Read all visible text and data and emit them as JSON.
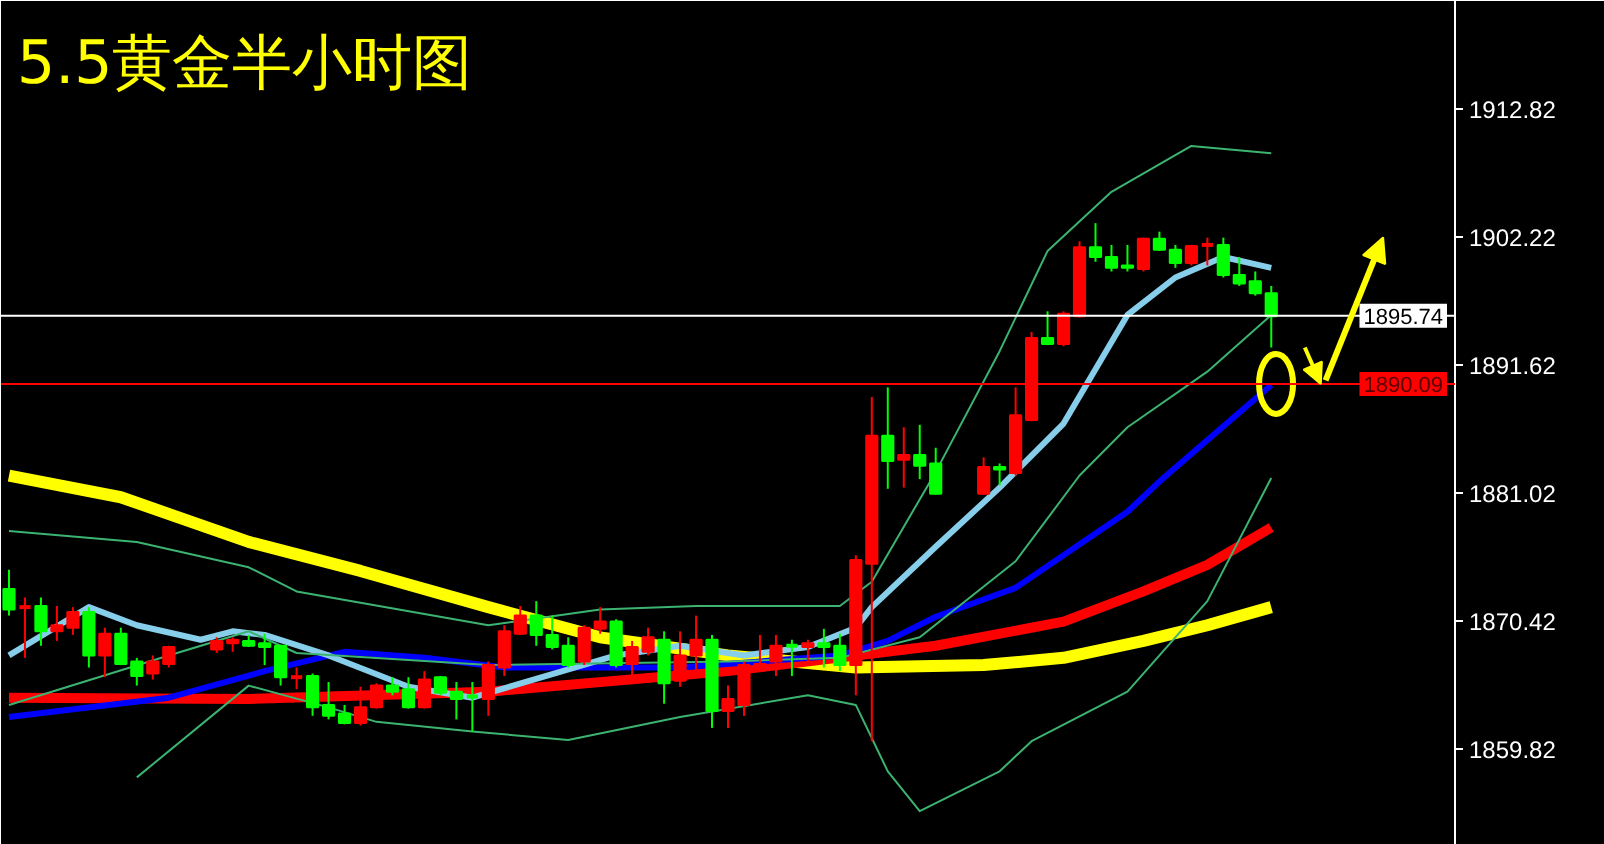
{
  "chart_data": {
    "type": "candlestick",
    "title": "5.5黄金半小时图",
    "categories": [
      null,
      null,
      null,
      null,
      null,
      null,
      null,
      null,
      null,
      null,
      null,
      null,
      null,
      null,
      null,
      null,
      null,
      null,
      null,
      null,
      null,
      null,
      null,
      null,
      null,
      null,
      null,
      null,
      null,
      null,
      null,
      null,
      null,
      null,
      null,
      null,
      null,
      null,
      null,
      null,
      null,
      null,
      null,
      null,
      null,
      null,
      null,
      null,
      null,
      null,
      null,
      null,
      null,
      null,
      null,
      null,
      null,
      null,
      null,
      null,
      null,
      null,
      null,
      null,
      null,
      null,
      null,
      null,
      null,
      null,
      null,
      null,
      null,
      null,
      null,
      null,
      null,
      null,
      null,
      null,
      null,
      null,
      null,
      null,
      null,
      null,
      null,
      null,
      null,
      null,
      null
    ],
    "ohlc": [
      [
        1873.1,
        1874.7,
        1870.9,
        1871.4
      ],
      [
        1871.6,
        1872.4,
        1867.4,
        1871.7
      ],
      [
        1871.7,
        1872.4,
        1868.4,
        1869.6
      ],
      [
        1869.6,
        1871.7,
        1868.8,
        1870.1
      ],
      [
        1869.9,
        1871.6,
        1869.3,
        1871.2
      ],
      [
        1871.2,
        1871.6,
        1866.6,
        1867.6
      ],
      [
        1867.6,
        1869.9,
        1865.8,
        1869.4
      ],
      [
        1869.4,
        1869.9,
        1866.8,
        1866.9
      ],
      [
        1867.1,
        1867.4,
        1865.1,
        1865.9
      ],
      [
        1866.1,
        1867.6,
        1865.6,
        1867.1
      ],
      [
        1866.9,
        1868.4,
        1866.6,
        1868.3
      ],
      null,
      null,
      [
        1868.1,
        1869.1,
        1867.8,
        1868.8
      ],
      [
        1868.6,
        1869.1,
        1867.9,
        1868.9
      ],
      [
        1868.8,
        1869.3,
        1868.3,
        1868.4
      ],
      [
        1868.6,
        1869.4,
        1866.8,
        1868.3
      ],
      [
        1868.4,
        1868.4,
        1865.1,
        1865.8
      ],
      [
        1865.8,
        1866.6,
        1864.8,
        1865.9
      ],
      [
        1865.9,
        1866.1,
        1862.6,
        1863.3
      ],
      [
        1863.5,
        1865.4,
        1862.3,
        1862.6
      ],
      [
        1862.8,
        1863.5,
        1861.9,
        1862.0
      ],
      [
        1862.0,
        1865.0,
        1861.8,
        1863.3
      ],
      [
        1863.3,
        1865.3,
        1863.2,
        1865.1
      ],
      [
        1865.1,
        1865.8,
        1864.3,
        1864.6
      ],
      [
        1864.8,
        1865.8,
        1863.2,
        1863.3
      ],
      [
        1863.3,
        1866.3,
        1863.2,
        1865.6
      ],
      [
        1865.8,
        1865.9,
        1864.3,
        1864.5
      ],
      [
        1864.6,
        1865.4,
        1862.3,
        1864.0
      ],
      [
        1864.2,
        1865.4,
        1861.3,
        1864.1
      ],
      [
        1864.0,
        1867.1,
        1862.6,
        1866.8
      ],
      [
        1866.6,
        1870.1,
        1865.9,
        1869.6
      ],
      [
        1869.4,
        1871.7,
        1869.3,
        1870.9
      ],
      [
        1870.9,
        1872.1,
        1868.4,
        1869.3
      ],
      [
        1869.3,
        1870.9,
        1868.1,
        1868.3
      ],
      [
        1868.4,
        1869.1,
        1866.6,
        1866.8
      ],
      [
        1867.1,
        1870.1,
        1866.8,
        1869.9
      ],
      [
        1869.8,
        1871.6,
        1869.4,
        1870.4
      ],
      [
        1870.4,
        1870.6,
        1866.6,
        1866.8
      ],
      [
        1866.9,
        1868.8,
        1865.8,
        1868.3
      ],
      [
        1867.9,
        1869.9,
        1867.6,
        1869.1
      ],
      [
        1868.9,
        1869.6,
        1863.6,
        1865.3
      ],
      [
        1865.5,
        1869.6,
        1865.0,
        1867.6
      ],
      [
        1867.6,
        1870.9,
        1866.3,
        1868.9
      ],
      [
        1868.9,
        1869.3,
        1861.6,
        1863.0
      ],
      [
        1863.0,
        1865.1,
        1861.6,
        1864.0
      ],
      [
        1863.5,
        1867.1,
        1862.6,
        1866.8
      ],
      [
        1866.6,
        1869.3,
        1866.3,
        1866.9
      ],
      [
        1867.1,
        1869.3,
        1865.9,
        1868.4
      ],
      [
        1868.4,
        1868.9,
        1865.9,
        1868.3
      ],
      [
        1868.3,
        1868.9,
        1867.1,
        1868.6
      ],
      [
        1868.6,
        1869.8,
        1866.6,
        1868.3
      ],
      [
        1868.4,
        1869.4,
        1866.3,
        1866.8
      ],
      [
        1866.8,
        1875.9,
        1864.3,
        1875.5
      ],
      [
        1875.2,
        1889.0,
        1860.5,
        1885.8
      ],
      [
        1885.8,
        1889.8,
        1881.4,
        1883.7
      ],
      [
        1883.8,
        1886.5,
        1881.5,
        1884.2
      ],
      [
        1884.2,
        1886.7,
        1882.2,
        1883.3
      ],
      [
        1883.5,
        1884.8,
        1880.9,
        1881.0
      ],
      null,
      null,
      [
        1881.0,
        1884.0,
        1880.9,
        1883.2
      ],
      [
        1883.2,
        1883.5,
        1881.7,
        1883.0
      ],
      [
        1882.7,
        1889.8,
        1882.5,
        1887.5
      ],
      [
        1887.1,
        1894.4,
        1887.0,
        1893.9
      ],
      [
        1893.9,
        1896.1,
        1893.3,
        1893.4
      ],
      [
        1893.4,
        1896.1,
        1893.2,
        1895.9
      ],
      [
        1895.7,
        1901.9,
        1895.6,
        1901.4
      ],
      [
        1901.4,
        1903.4,
        1900.2,
        1900.6
      ],
      [
        1900.6,
        1901.6,
        1899.4,
        1899.7
      ],
      [
        1899.9,
        1901.6,
        1899.4,
        1899.7
      ],
      [
        1899.6,
        1902.2,
        1899.4,
        1902.1
      ],
      [
        1902.1,
        1902.7,
        1901.1,
        1901.2
      ],
      [
        1901.2,
        1901.6,
        1899.7,
        1900.1
      ],
      [
        1900.1,
        1901.6,
        1899.9,
        1901.5
      ],
      [
        1901.6,
        1902.2,
        1899.9,
        1901.7
      ],
      [
        1901.6,
        1902.2,
        1898.9,
        1899.1
      ],
      [
        1899.1,
        1900.6,
        1898.2,
        1898.4
      ],
      [
        1898.6,
        1899.4,
        1897.4,
        1897.6
      ],
      [
        1897.6,
        1898.2,
        1893.1,
        1895.7
      ],
      null,
      null,
      null,
      null,
      null,
      null,
      null,
      null,
      null,
      null,
      null
    ],
    "colors": [
      "#00ff00",
      "#ff0000",
      "#00ff00",
      "#ff0000",
      "#ff0000",
      "#00ff00",
      "#ff0000",
      "#00ff00",
      "#00ff00",
      "#ff0000",
      "#ff0000",
      null,
      null,
      "#ff0000",
      "#ff0000",
      "#00ff00",
      "#00ff00",
      "#00ff00",
      "#ff0000",
      "#00ff00",
      "#00ff00",
      "#00ff00",
      "#ff0000",
      "#ff0000",
      "#00ff00",
      "#00ff00",
      "#ff0000",
      "#00ff00",
      "#00ff00",
      "#00ff00",
      "#ff0000",
      "#ff0000",
      "#ff0000",
      "#00ff00",
      "#00ff00",
      "#00ff00",
      "#ff0000",
      "#ff0000",
      "#00ff00",
      "#ff0000",
      "#ff0000",
      "#00ff00",
      "#ff0000",
      "#ff0000",
      "#00ff00",
      "#ff0000",
      "#ff0000",
      "#ff0000",
      "#ff0000",
      "#00ff00",
      "#ff0000",
      "#00ff00",
      "#00ff00",
      "#ff0000",
      "#ff0000",
      "#00ff00",
      "#ff0000",
      "#00ff00",
      "#00ff00",
      null,
      null,
      "#ff0000",
      "#00ff00",
      "#ff0000",
      "#ff0000",
      "#00ff00",
      "#ff0000",
      "#ff0000",
      "#00ff00",
      "#00ff00",
      "#00ff00",
      "#ff0000",
      "#00ff00",
      "#00ff00",
      "#ff0000",
      "#ff0000",
      "#00ff00",
      "#00ff00",
      "#00ff00",
      "#00ff00",
      null,
      null,
      null,
      null,
      null,
      null,
      null,
      null,
      null,
      null,
      null
    ],
    "series": [
      {
        "type": "line",
        "color": "#ffff00",
        "values": [
          1882.5,
          null,
          null,
          null,
          null,
          null,
          null,
          1880.7,
          null,
          null,
          null,
          null,
          null,
          null,
          null,
          1877.0,
          null,
          null,
          null,
          null,
          null,
          null,
          1874.6,
          null,
          null,
          null,
          null,
          null,
          null,
          null,
          1871.6,
          null,
          null,
          null,
          null,
          null,
          null,
          1869.1,
          null,
          null,
          null,
          null,
          null,
          null,
          null,
          1867.6,
          null,
          null,
          null,
          null,
          null,
          null,
          null,
          1866.6,
          null,
          null,
          null,
          null,
          null,
          null,
          null,
          1866.8,
          null,
          null,
          null,
          null,
          1867.4,
          null,
          null,
          null,
          null,
          1868.8,
          null,
          null,
          null,
          1870.1,
          null,
          null,
          null,
          1871.6,
          null,
          null,
          null,
          null,
          null,
          null,
          null,
          null,
          null,
          null,
          null
        ]
      },
      {
        "type": "line",
        "color": "#ff0000",
        "values": [
          1864.1,
          null,
          null,
          null,
          null,
          null,
          null,
          null,
          null,
          null,
          null,
          null,
          null,
          null,
          null,
          1864.0,
          null,
          null,
          null,
          null,
          null,
          null,
          null,
          null,
          null,
          null,
          null,
          null,
          null,
          null,
          1864.6,
          null,
          null,
          null,
          null,
          null,
          null,
          null,
          null,
          null,
          null,
          null,
          null,
          null,
          null,
          1866.3,
          null,
          null,
          null,
          null,
          null,
          null,
          null,
          1867.6,
          null,
          null,
          null,
          null,
          1868.4,
          null,
          null,
          null,
          null,
          null,
          null,
          null,
          1870.4,
          null,
          null,
          null,
          null,
          1872.9,
          null,
          null,
          null,
          1875.1,
          null,
          null,
          null,
          1878.2,
          null,
          null,
          null,
          null,
          null,
          null,
          null,
          null,
          null,
          null,
          null
        ]
      },
      {
        "type": "line",
        "color": "#0000ff",
        "values": [
          1862.5,
          null,
          null,
          null,
          null,
          null,
          null,
          null,
          null,
          null,
          1864.1,
          null,
          null,
          null,
          null,
          null,
          1866.3,
          null,
          null,
          null,
          null,
          1867.9,
          null,
          null,
          null,
          null,
          1867.4,
          null,
          null,
          null,
          null,
          1866.6,
          null,
          null,
          null,
          null,
          null,
          null,
          null,
          null,
          null,
          null,
          1866.6,
          null,
          null,
          null,
          null,
          null,
          null,
          null,
          null,
          null,
          1867.6,
          null,
          null,
          1868.8,
          null,
          null,
          1870.8,
          null,
          null,
          null,
          null,
          1873.2,
          null,
          null,
          null,
          null,
          null,
          null,
          1879.5,
          null,
          1882.0,
          null,
          null,
          null,
          null,
          null,
          null,
          1890.0,
          null,
          null,
          null,
          null,
          null,
          null,
          null,
          null,
          null,
          null,
          null
        ]
      },
      {
        "type": "line",
        "color": "#87ceeb",
        "values": [
          1867.6,
          null,
          null,
          null,
          null,
          1871.6,
          null,
          null,
          1870.1,
          null,
          null,
          null,
          1868.9,
          null,
          1869.6,
          null,
          1869.3,
          null,
          null,
          null,
          1867.6,
          null,
          null,
          null,
          null,
          1865.0,
          null,
          null,
          null,
          1864.1,
          null,
          null,
          null,
          null,
          null,
          null,
          null,
          null,
          1867.6,
          null,
          null,
          null,
          1868.4,
          null,
          null,
          null,
          1867.6,
          null,
          null,
          null,
          1868.3,
          null,
          null,
          1869.9,
          1871.6,
          null,
          null,
          null,
          1876.6,
          null,
          null,
          null,
          1881.5,
          null,
          null,
          null,
          1886.8,
          null,
          null,
          null,
          1895.8,
          null,
          null,
          1898.9,
          null,
          null,
          1900.6,
          null,
          null,
          1899.7,
          null,
          null,
          null,
          null,
          null,
          null,
          null,
          null,
          null,
          null,
          null
        ]
      },
      {
        "type": "line",
        "color": "#3cb371",
        "values": [
          1877.9,
          null,
          null,
          null,
          null,
          null,
          null,
          null,
          1877.0,
          null,
          null,
          null,
          null,
          null,
          null,
          1874.9,
          null,
          null,
          1872.9,
          null,
          null,
          null,
          null,
          null,
          null,
          null,
          null,
          null,
          null,
          null,
          1870.1,
          null,
          null,
          null,
          null,
          null,
          null,
          1871.4,
          null,
          null,
          null,
          null,
          null,
          1871.7,
          null,
          null,
          null,
          null,
          null,
          null,
          null,
          null,
          1871.7,
          null,
          1873.7,
          null,
          null,
          null,
          1882.8,
          null,
          null,
          null,
          1892.8,
          null,
          null,
          1901.1,
          null,
          null,
          null,
          1906.0,
          null,
          null,
          null,
          null,
          1909.8,
          null,
          null,
          null,
          null,
          1909.2,
          null,
          null,
          null,
          null,
          null,
          null,
          null,
          null,
          null,
          null,
          null
        ]
      },
      {
        "type": "line",
        "color": "#3cb371",
        "values": [
          1863.5,
          null,
          null,
          null,
          null,
          null,
          null,
          null,
          null,
          null,
          1867.6,
          null,
          null,
          null,
          null,
          1869.6,
          null,
          null,
          1867.8,
          null,
          null,
          null,
          null,
          null,
          null,
          null,
          null,
          null,
          null,
          null,
          1866.8,
          null,
          null,
          null,
          null,
          null,
          null,
          null,
          null,
          null,
          null,
          null,
          null,
          null,
          null,
          1867.1,
          null,
          null,
          null,
          null,
          null,
          null,
          1867.4,
          null,
          null,
          null,
          null,
          1869.1,
          null,
          null,
          null,
          null,
          null,
          1875.4,
          null,
          null,
          null,
          1882.5,
          null,
          null,
          1886.5,
          null,
          null,
          null,
          null,
          1891.1,
          null,
          null,
          null,
          1895.8,
          null,
          null,
          null,
          null,
          null,
          null,
          null,
          null,
          null,
          null,
          null
        ]
      },
      {
        "type": "line",
        "color": "#3cb371",
        "values": [
          null,
          null,
          null,
          null,
          null,
          null,
          null,
          null,
          1857.5,
          null,
          null,
          null,
          null,
          null,
          null,
          1865.1,
          null,
          null,
          null,
          null,
          1863.3,
          null,
          null,
          1862.1,
          null,
          null,
          null,
          null,
          null,
          1861.3,
          null,
          null,
          null,
          null,
          null,
          1860.6,
          null,
          null,
          null,
          null,
          null,
          null,
          1862.5,
          null,
          null,
          null,
          null,
          null,
          null,
          null,
          1864.3,
          null,
          null,
          1863.5,
          null,
          1858.0,
          null,
          1854.7,
          null,
          null,
          null,
          null,
          1858.0,
          null,
          1860.5,
          null,
          null,
          null,
          null,
          null,
          1864.6,
          null,
          null,
          null,
          null,
          1872.1,
          null,
          null,
          null,
          1882.3,
          null,
          null,
          null,
          null,
          null,
          null,
          null,
          null,
          null,
          null,
          null
        ]
      }
    ],
    "ref_lines": [
      {
        "axis": "y",
        "value": 1895.74,
        "label": "1895.74",
        "color": "#ffffff"
      },
      {
        "axis": "y",
        "value": 1890.09,
        "label": "1890.09",
        "color": "#ff0000"
      }
    ],
    "ylim": [
      1851.9,
      1921.8
    ],
    "yticks": [
      1912.82,
      1902.22,
      1891.62,
      1881.02,
      1870.42,
      1859.82
    ],
    "tick_labels": "y"
  }
}
